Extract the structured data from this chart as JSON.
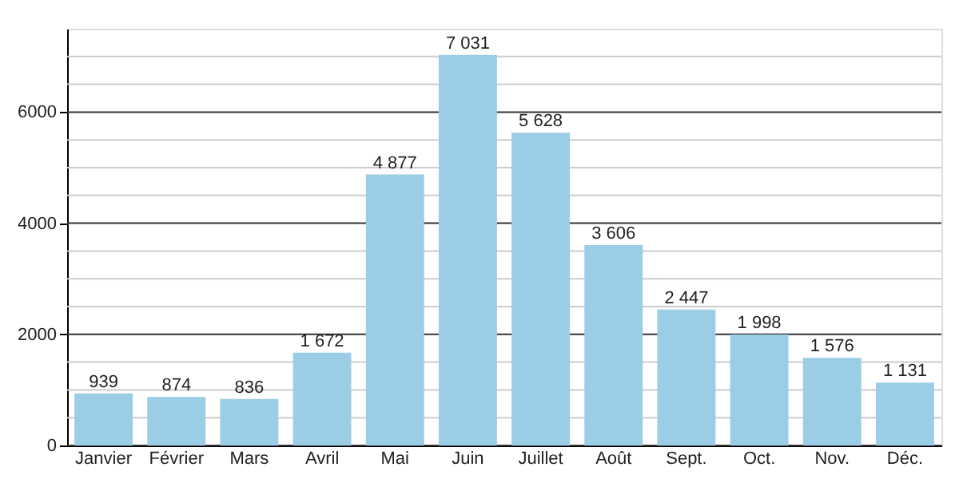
{
  "chart_data": {
    "type": "bar",
    "categories": [
      "Janvier",
      "Février",
      "Mars",
      "Avril",
      "Mai",
      "Juin",
      "Juillet",
      "Août",
      "Sept.",
      "Oct.",
      "Nov.",
      "Déc."
    ],
    "values": [
      939,
      874,
      836,
      1672,
      4877,
      7031,
      5628,
      3606,
      2447,
      1998,
      1576,
      1131
    ],
    "value_labels": [
      "939",
      "874",
      "836",
      "1 672",
      "4 877",
      "7 031",
      "5 628",
      "3 606",
      "2 447",
      "1 998",
      "1 576",
      "1 131"
    ],
    "color": "#9ccde6",
    "ylim": [
      0,
      7500
    ],
    "yticks": [
      0,
      {
        "value": 500,
        "label": null
      },
      {
        "value": 1000,
        "label": null
      },
      {
        "value": 1500,
        "label": null
      },
      2000,
      {
        "value": 2500,
        "label": null
      },
      {
        "value": 3000,
        "label": null
      },
      {
        "value": 3500,
        "label": null
      },
      4000,
      {
        "value": 4500,
        "label": null
      },
      {
        "value": 5000,
        "label": null
      },
      {
        "value": 5500,
        "label": null
      },
      6000,
      {
        "value": 6500,
        "label": null
      },
      {
        "value": 7000,
        "label": null
      }
    ],
    "grid": "y"
  }
}
